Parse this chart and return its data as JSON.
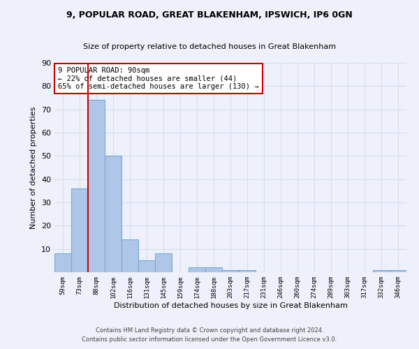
{
  "title1": "9, POPULAR ROAD, GREAT BLAKENHAM, IPSWICH, IP6 0GN",
  "title2": "Size of property relative to detached houses in Great Blakenham",
  "xlabel": "Distribution of detached houses by size in Great Blakenham",
  "ylabel": "Number of detached properties",
  "bin_labels": [
    "59sqm",
    "73sqm",
    "88sqm",
    "102sqm",
    "116sqm",
    "131sqm",
    "145sqm",
    "159sqm",
    "174sqm",
    "188sqm",
    "203sqm",
    "217sqm",
    "231sqm",
    "246sqm",
    "260sqm",
    "274sqm",
    "289sqm",
    "303sqm",
    "317sqm",
    "332sqm",
    "346sqm"
  ],
  "bar_heights": [
    8,
    36,
    74,
    50,
    14,
    5,
    8,
    0,
    2,
    2,
    1,
    1,
    0,
    0,
    0,
    0,
    0,
    0,
    0,
    1,
    1
  ],
  "bar_color": "#aec6e8",
  "bar_edge_color": "#7aaacf",
  "highlight_line_x_label": "88sqm",
  "annotation_title": "9 POPULAR ROAD: 90sqm",
  "annotation_line1": "← 22% of detached houses are smaller (44)",
  "annotation_line2": "65% of semi-detached houses are larger (130) →",
  "red_line_color": "#cc0000",
  "annotation_box_color": "#ffffff",
  "annotation_box_edge": "#cc0000",
  "ylim": [
    0,
    90
  ],
  "yticks": [
    0,
    10,
    20,
    30,
    40,
    50,
    60,
    70,
    80,
    90
  ],
  "footer1": "Contains HM Land Registry data © Crown copyright and database right 2024.",
  "footer2": "Contains public sector information licensed under the Open Government Licence v3.0.",
  "bg_color": "#eef1fb",
  "grid_color": "#d8ddf0"
}
